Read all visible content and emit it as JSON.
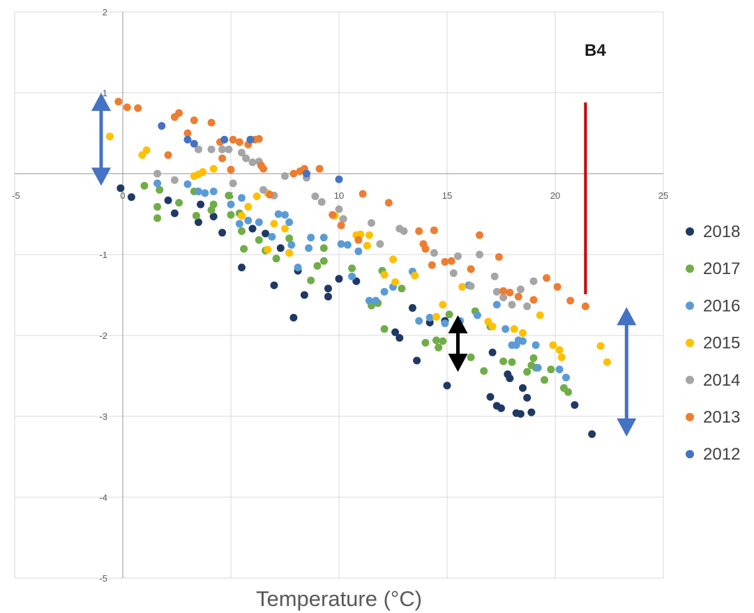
{
  "chart_data": {
    "type": "scatter",
    "title": "",
    "annotation": "B4",
    "xlabel": "Temperature (°C)",
    "ylabel": "",
    "xlim": [
      -5,
      25
    ],
    "ylim": [
      -5,
      2
    ],
    "x_ticks": [
      "-5",
      "0",
      "5",
      "10",
      "15",
      "20",
      "25"
    ],
    "y_ticks": [
      "2",
      "1",
      "-1",
      "-2",
      "-3",
      "-4",
      "-5"
    ],
    "grid": true,
    "legend_position": "right",
    "series": [
      {
        "name": "2018",
        "color": "#203864",
        "points": [
          [
            -0.1,
            -0.18
          ],
          [
            0.4,
            -0.29
          ],
          [
            2.1,
            -0.33
          ],
          [
            2.4,
            -0.49
          ],
          [
            3.5,
            -0.6
          ],
          [
            3.6,
            -0.38
          ],
          [
            4.2,
            -0.53
          ],
          [
            4.6,
            -0.73
          ],
          [
            5.5,
            -1.16
          ],
          [
            6.0,
            -0.68
          ],
          [
            6.6,
            -0.74
          ],
          [
            7.0,
            -1.38
          ],
          [
            7.3,
            -0.92
          ],
          [
            7.9,
            -1.78
          ],
          [
            8.1,
            -1.2
          ],
          [
            8.4,
            -1.5
          ],
          [
            9.5,
            -1.42
          ],
          [
            9.5,
            -1.52
          ],
          [
            10.0,
            -1.3
          ],
          [
            10.8,
            -1.33
          ],
          [
            12.6,
            -1.96
          ],
          [
            12.8,
            -2.03
          ],
          [
            13.4,
            -1.66
          ],
          [
            13.6,
            -2.31
          ],
          [
            14.2,
            -1.84
          ],
          [
            14.9,
            -1.82
          ],
          [
            15.0,
            -2.62
          ],
          [
            17.0,
            -2.76
          ],
          [
            17.1,
            -2.21
          ],
          [
            17.3,
            -2.87
          ],
          [
            17.5,
            -2.9
          ],
          [
            17.8,
            -2.48
          ],
          [
            17.9,
            -2.53
          ],
          [
            18.2,
            -2.96
          ],
          [
            18.4,
            -2.97
          ],
          [
            18.5,
            -2.65
          ],
          [
            18.7,
            -2.77
          ],
          [
            18.9,
            -2.95
          ],
          [
            20.9,
            -2.86
          ],
          [
            21.7,
            -3.22
          ]
        ]
      },
      {
        "name": "2017",
        "color": "#70AD47",
        "points": [
          [
            1.0,
            -0.15
          ],
          [
            1.6,
            -0.41
          ],
          [
            1.6,
            -0.55
          ],
          [
            1.7,
            -0.2
          ],
          [
            2.6,
            -0.36
          ],
          [
            3.3,
            -0.22
          ],
          [
            3.4,
            -0.52
          ],
          [
            4.1,
            -0.45
          ],
          [
            4.2,
            -0.38
          ],
          [
            4.9,
            -0.27
          ],
          [
            5.0,
            -0.51
          ],
          [
            5.4,
            -0.49
          ],
          [
            5.5,
            -0.71
          ],
          [
            5.6,
            -0.93
          ],
          [
            6.3,
            -0.82
          ],
          [
            6.6,
            -0.95
          ],
          [
            7.1,
            -1.05
          ],
          [
            7.7,
            -0.8
          ],
          [
            8.7,
            -1.32
          ],
          [
            9.0,
            -1.14
          ],
          [
            9.3,
            -0.92
          ],
          [
            9.3,
            -1.08
          ],
          [
            10.6,
            -1.17
          ],
          [
            11.5,
            -1.63
          ],
          [
            11.8,
            -1.6
          ],
          [
            12.0,
            -1.2
          ],
          [
            12.1,
            -1.92
          ],
          [
            12.9,
            -1.42
          ],
          [
            14.0,
            -2.09
          ],
          [
            14.5,
            -2.06
          ],
          [
            14.6,
            -2.15
          ],
          [
            14.8,
            -2.07
          ],
          [
            15.1,
            -1.74
          ],
          [
            16.1,
            -2.27
          ],
          [
            16.3,
            -1.7
          ],
          [
            16.7,
            -2.44
          ],
          [
            17.0,
            -1.89
          ],
          [
            17.6,
            -2.32
          ],
          [
            18.0,
            -2.33
          ],
          [
            18.7,
            -2.45
          ],
          [
            18.9,
            -2.37
          ],
          [
            19.0,
            -2.28
          ],
          [
            19.1,
            -2.4
          ],
          [
            19.5,
            -2.55
          ],
          [
            19.8,
            -2.42
          ],
          [
            20.4,
            -2.65
          ],
          [
            20.6,
            -2.7
          ]
        ]
      },
      {
        "name": "2016",
        "color": "#5B9BD5",
        "points": [
          [
            1.6,
            -0.12
          ],
          [
            3.0,
            -0.13
          ],
          [
            3.5,
            -0.22
          ],
          [
            3.8,
            -0.24
          ],
          [
            4.2,
            -0.22
          ],
          [
            5.0,
            -0.38
          ],
          [
            5.4,
            -0.62
          ],
          [
            5.5,
            -0.3
          ],
          [
            5.8,
            -0.58
          ],
          [
            6.3,
            -0.6
          ],
          [
            6.9,
            -0.78
          ],
          [
            7.2,
            -0.5
          ],
          [
            7.5,
            -0.51
          ],
          [
            7.7,
            -0.6
          ],
          [
            7.8,
            -0.88
          ],
          [
            8.1,
            -1.16
          ],
          [
            8.6,
            -0.92
          ],
          [
            8.7,
            -0.79
          ],
          [
            9.3,
            -0.79
          ],
          [
            10.1,
            -0.87
          ],
          [
            10.4,
            -0.88
          ],
          [
            10.6,
            -1.27
          ],
          [
            10.9,
            -0.96
          ],
          [
            11.4,
            -1.57
          ],
          [
            11.7,
            -1.57
          ],
          [
            12.1,
            -1.46
          ],
          [
            12.5,
            -1.4
          ],
          [
            13.4,
            -1.21
          ],
          [
            13.7,
            -1.82
          ],
          [
            14.2,
            -1.78
          ],
          [
            14.9,
            -1.85
          ],
          [
            15.6,
            -1.82
          ],
          [
            16.0,
            -1.38
          ],
          [
            16.4,
            -1.75
          ],
          [
            17.3,
            -1.62
          ],
          [
            17.7,
            -1.92
          ],
          [
            18.0,
            -2.12
          ],
          [
            18.2,
            -2.12
          ],
          [
            18.3,
            -2.06
          ],
          [
            18.5,
            -2.07
          ],
          [
            19.1,
            -2.12
          ],
          [
            19.2,
            -2.4
          ],
          [
            20.2,
            -2.42
          ],
          [
            20.5,
            -2.52
          ]
        ]
      },
      {
        "name": "2015",
        "color": "#FFC000",
        "points": [
          [
            -0.6,
            0.46
          ],
          [
            0.9,
            0.23
          ],
          [
            1.1,
            0.29
          ],
          [
            3.3,
            -0.03
          ],
          [
            3.5,
            -0.01
          ],
          [
            3.7,
            0.02
          ],
          [
            4.2,
            0.06
          ],
          [
            5.5,
            -0.52
          ],
          [
            5.8,
            -0.41
          ],
          [
            6.2,
            -0.28
          ],
          [
            6.7,
            -0.24
          ],
          [
            6.7,
            -0.94
          ],
          [
            7.0,
            -0.62
          ],
          [
            7.5,
            -0.68
          ],
          [
            7.7,
            -0.98
          ],
          [
            9.8,
            -0.52
          ],
          [
            10.8,
            -0.76
          ],
          [
            11.0,
            -0.75
          ],
          [
            11.3,
            -0.89
          ],
          [
            11.4,
            -0.76
          ],
          [
            12.1,
            -1.25
          ],
          [
            12.5,
            -1.06
          ],
          [
            12.6,
            -1.34
          ],
          [
            13.5,
            -1.26
          ],
          [
            14.5,
            -1.77
          ],
          [
            14.8,
            -1.62
          ],
          [
            15.7,
            -1.4
          ],
          [
            16.9,
            -1.83
          ],
          [
            17.1,
            -1.89
          ],
          [
            18.1,
            -1.92
          ],
          [
            18.5,
            -1.97
          ],
          [
            19.3,
            -1.75
          ],
          [
            19.9,
            -2.12
          ],
          [
            20.2,
            -2.18
          ],
          [
            20.3,
            -2.27
          ],
          [
            22.1,
            -2.13
          ],
          [
            22.4,
            -2.33
          ]
        ]
      },
      {
        "name": "2014",
        "color": "#A5A5A5",
        "points": [
          [
            1.6,
            0.0
          ],
          [
            2.4,
            -0.08
          ],
          [
            3.5,
            0.3
          ],
          [
            4.1,
            0.3
          ],
          [
            4.6,
            0.3
          ],
          [
            4.9,
            0.3
          ],
          [
            5.5,
            0.26
          ],
          [
            5.7,
            0.19
          ],
          [
            6.0,
            0.14
          ],
          [
            6.3,
            0.15
          ],
          [
            5.1,
            -0.12
          ],
          [
            6.5,
            -0.2
          ],
          [
            7.0,
            -0.27
          ],
          [
            7.5,
            -0.03
          ],
          [
            8.5,
            -0.05
          ],
          [
            8.9,
            -0.28
          ],
          [
            9.2,
            -0.35
          ],
          [
            10.0,
            -0.44
          ],
          [
            10.2,
            -0.56
          ],
          [
            11.5,
            -0.61
          ],
          [
            11.9,
            -0.87
          ],
          [
            12.8,
            -0.68
          ],
          [
            13.0,
            -0.71
          ],
          [
            14.4,
            -0.98
          ],
          [
            15.3,
            -1.23
          ],
          [
            15.5,
            -1.02
          ],
          [
            16.1,
            -1.39
          ],
          [
            16.5,
            -1.0
          ],
          [
            17.2,
            -1.27
          ],
          [
            17.3,
            -1.46
          ],
          [
            17.6,
            -1.53
          ],
          [
            18.0,
            -1.62
          ],
          [
            18.4,
            -1.43
          ],
          [
            18.7,
            -1.64
          ],
          [
            19.0,
            -1.33
          ]
        ]
      },
      {
        "name": "2013",
        "color": "#ED7D31",
        "points": [
          [
            -0.2,
            0.89
          ],
          [
            0.2,
            0.82
          ],
          [
            0.7,
            0.81
          ],
          [
            2.1,
            0.23
          ],
          [
            2.4,
            0.7
          ],
          [
            2.6,
            0.75
          ],
          [
            3.0,
            0.5
          ],
          [
            3.3,
            0.66
          ],
          [
            4.1,
            0.63
          ],
          [
            4.5,
            0.39
          ],
          [
            4.6,
            0.19
          ],
          [
            5.0,
            0.05
          ],
          [
            5.1,
            0.42
          ],
          [
            5.4,
            0.39
          ],
          [
            5.8,
            0.36
          ],
          [
            6.1,
            0.42
          ],
          [
            6.3,
            0.43
          ],
          [
            6.4,
            0.1
          ],
          [
            6.5,
            0.06
          ],
          [
            6.8,
            -0.26
          ],
          [
            7.9,
            0.0
          ],
          [
            8.2,
            0.03
          ],
          [
            8.4,
            0.06
          ],
          [
            9.1,
            0.06
          ],
          [
            9.7,
            -0.51
          ],
          [
            10.1,
            -0.64
          ],
          [
            10.9,
            -0.82
          ],
          [
            11.1,
            -0.25
          ],
          [
            12.3,
            -0.36
          ],
          [
            13.7,
            -0.71
          ],
          [
            13.9,
            -0.87
          ],
          [
            14.0,
            -0.93
          ],
          [
            14.3,
            -1.13
          ],
          [
            14.4,
            -0.7
          ],
          [
            14.9,
            -1.09
          ],
          [
            15.2,
            -1.08
          ],
          [
            16.1,
            -1.18
          ],
          [
            16.5,
            -0.76
          ],
          [
            17.4,
            -1.03
          ],
          [
            17.6,
            -1.45
          ],
          [
            17.9,
            -1.47
          ],
          [
            18.3,
            -1.52
          ],
          [
            19.0,
            -1.56
          ],
          [
            19.6,
            -1.29
          ],
          [
            20.1,
            -1.4
          ],
          [
            20.7,
            -1.57
          ],
          [
            21.4,
            -1.64
          ]
        ]
      },
      {
        "name": "2012",
        "color": "#4472C4",
        "points": [
          [
            1.8,
            0.59
          ],
          [
            3.0,
            0.42
          ],
          [
            3.3,
            0.37
          ],
          [
            4.7,
            0.42
          ],
          [
            5.9,
            0.42
          ],
          [
            8.5,
            0.0
          ],
          [
            10.0,
            -0.07
          ]
        ]
      }
    ],
    "arrows": [
      {
        "name": "left-blue-arrow",
        "color": "#4472C4",
        "x": -1.0,
        "y1": 1.0,
        "y2": -0.15
      },
      {
        "name": "middle-black-arrow",
        "color": "#000000",
        "x": 15.5,
        "y1": -1.75,
        "y2": -2.45
      },
      {
        "name": "right-blue-arrow",
        "color": "#4472C4",
        "x": 23.3,
        "y1": -1.65,
        "y2": -3.25
      }
    ],
    "marker_line": {
      "color": "#C00000",
      "x": 21.4,
      "y1": 0.88,
      "y2": -1.49
    }
  }
}
